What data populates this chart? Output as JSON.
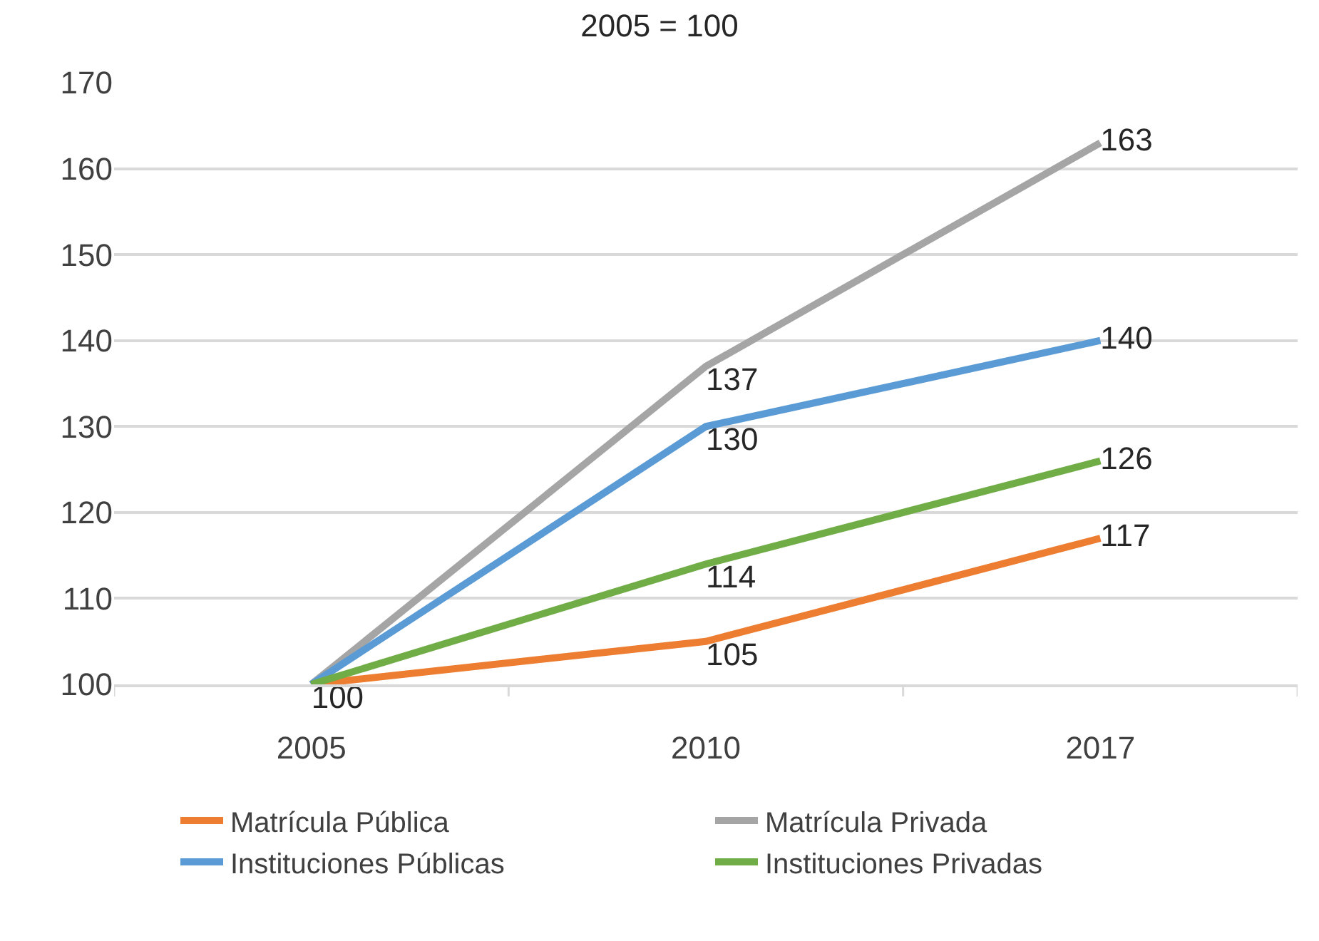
{
  "chart_data": {
    "type": "line",
    "title": "2005 = 100",
    "categories": [
      "2005",
      "2010",
      "2017"
    ],
    "series": [
      {
        "name": "Matrícula Pública",
        "color": "#ed7d31",
        "values": [
          100,
          105,
          117
        ],
        "value_labels": [
          "100",
          "105",
          "117"
        ]
      },
      {
        "name": "Matrícula Privada",
        "color": "#a5a5a5",
        "values": [
          100,
          137,
          163
        ],
        "value_labels": [
          null,
          "137",
          "163"
        ]
      },
      {
        "name": "Instituciones Públicas",
        "color": "#5b9bd5",
        "values": [
          100,
          130,
          140
        ],
        "value_labels": [
          null,
          "130",
          "140"
        ]
      },
      {
        "name": "Instituciones Privadas",
        "color": "#70ad47",
        "values": [
          100,
          114,
          126
        ],
        "value_labels": [
          null,
          "114",
          "126"
        ]
      }
    ],
    "ylim": [
      100,
      170
    ],
    "yticks": [
      100,
      110,
      120,
      130,
      140,
      150,
      160,
      170
    ],
    "grid": "y",
    "legend": "bottom",
    "marker": "none",
    "line_style": "solid"
  }
}
